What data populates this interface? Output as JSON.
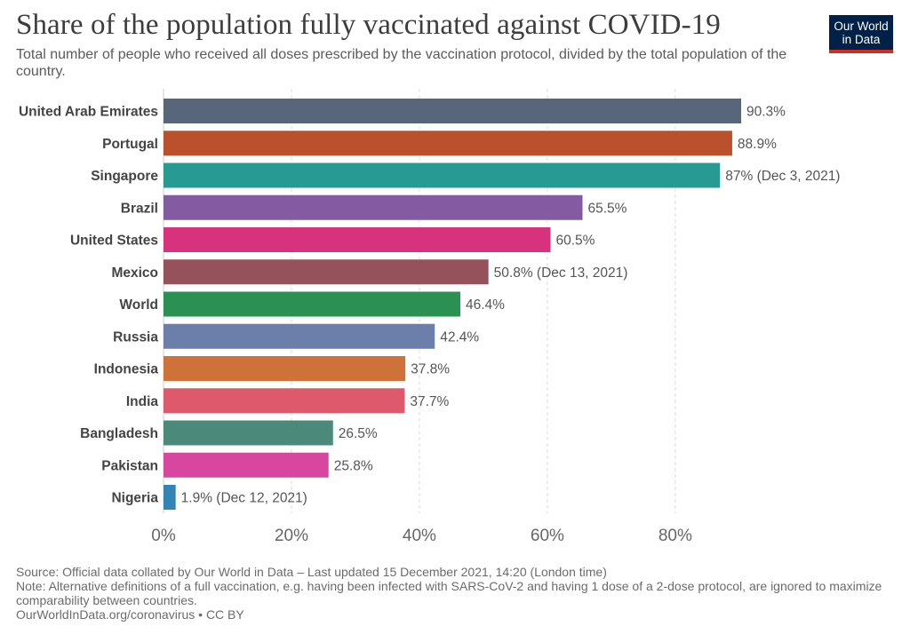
{
  "header": {
    "title": "Share of the population fully vaccinated against COVID-19",
    "subtitle": "Total number of people who received all doses prescribed by the vaccination protocol, divided by the total population of the country."
  },
  "logo": {
    "line1": "Our World",
    "line2": "in Data"
  },
  "chart_data": {
    "type": "bar",
    "orientation": "horizontal",
    "title": "Share of the population fully vaccinated against COVID-19",
    "xlim": [
      0,
      90.3
    ],
    "ticks": [
      0,
      20,
      40,
      60,
      80
    ],
    "tick_labels": [
      "0%",
      "20%",
      "40%",
      "60%",
      "80%"
    ],
    "grid": true,
    "categories": [
      "United Arab Emirates",
      "Portugal",
      "Singapore",
      "Brazil",
      "United States",
      "Mexico",
      "World",
      "Russia",
      "Indonesia",
      "India",
      "Bangladesh",
      "Pakistan",
      "Nigeria"
    ],
    "values": [
      90.3,
      88.9,
      87,
      65.5,
      60.5,
      50.8,
      46.4,
      42.4,
      37.8,
      37.7,
      26.5,
      25.8,
      1.9
    ],
    "value_labels": [
      "90.3%",
      "88.9%",
      "87% (Dec 3, 2021)",
      "65.5%",
      "60.5%",
      "50.8% (Dec 13, 2021)",
      "46.4%",
      "42.4%",
      "37.8%",
      "37.7%",
      "26.5%",
      "25.8%",
      "1.9% (Dec 12, 2021)"
    ],
    "colors": [
      "#58667b",
      "#bb502d",
      "#279a93",
      "#835ba2",
      "#d7327b",
      "#95525a",
      "#2b9153",
      "#6a7faa",
      "#cf7239",
      "#de5a6b",
      "#4b8a7b",
      "#d8469f",
      "#3384b5"
    ]
  },
  "footer": {
    "source": "Source: Official data collated by Our World in Data – Last updated 15 December 2021, 14:20 (London time)",
    "note": "Note: Alternative definitions of a full vaccination, e.g. having been infected with SARS-CoV-2 and having 1 dose of a 2-dose protocol, are ignored to maximize comparability between countries.",
    "credit": "OurWorldInData.org/coronavirus • CC BY"
  }
}
